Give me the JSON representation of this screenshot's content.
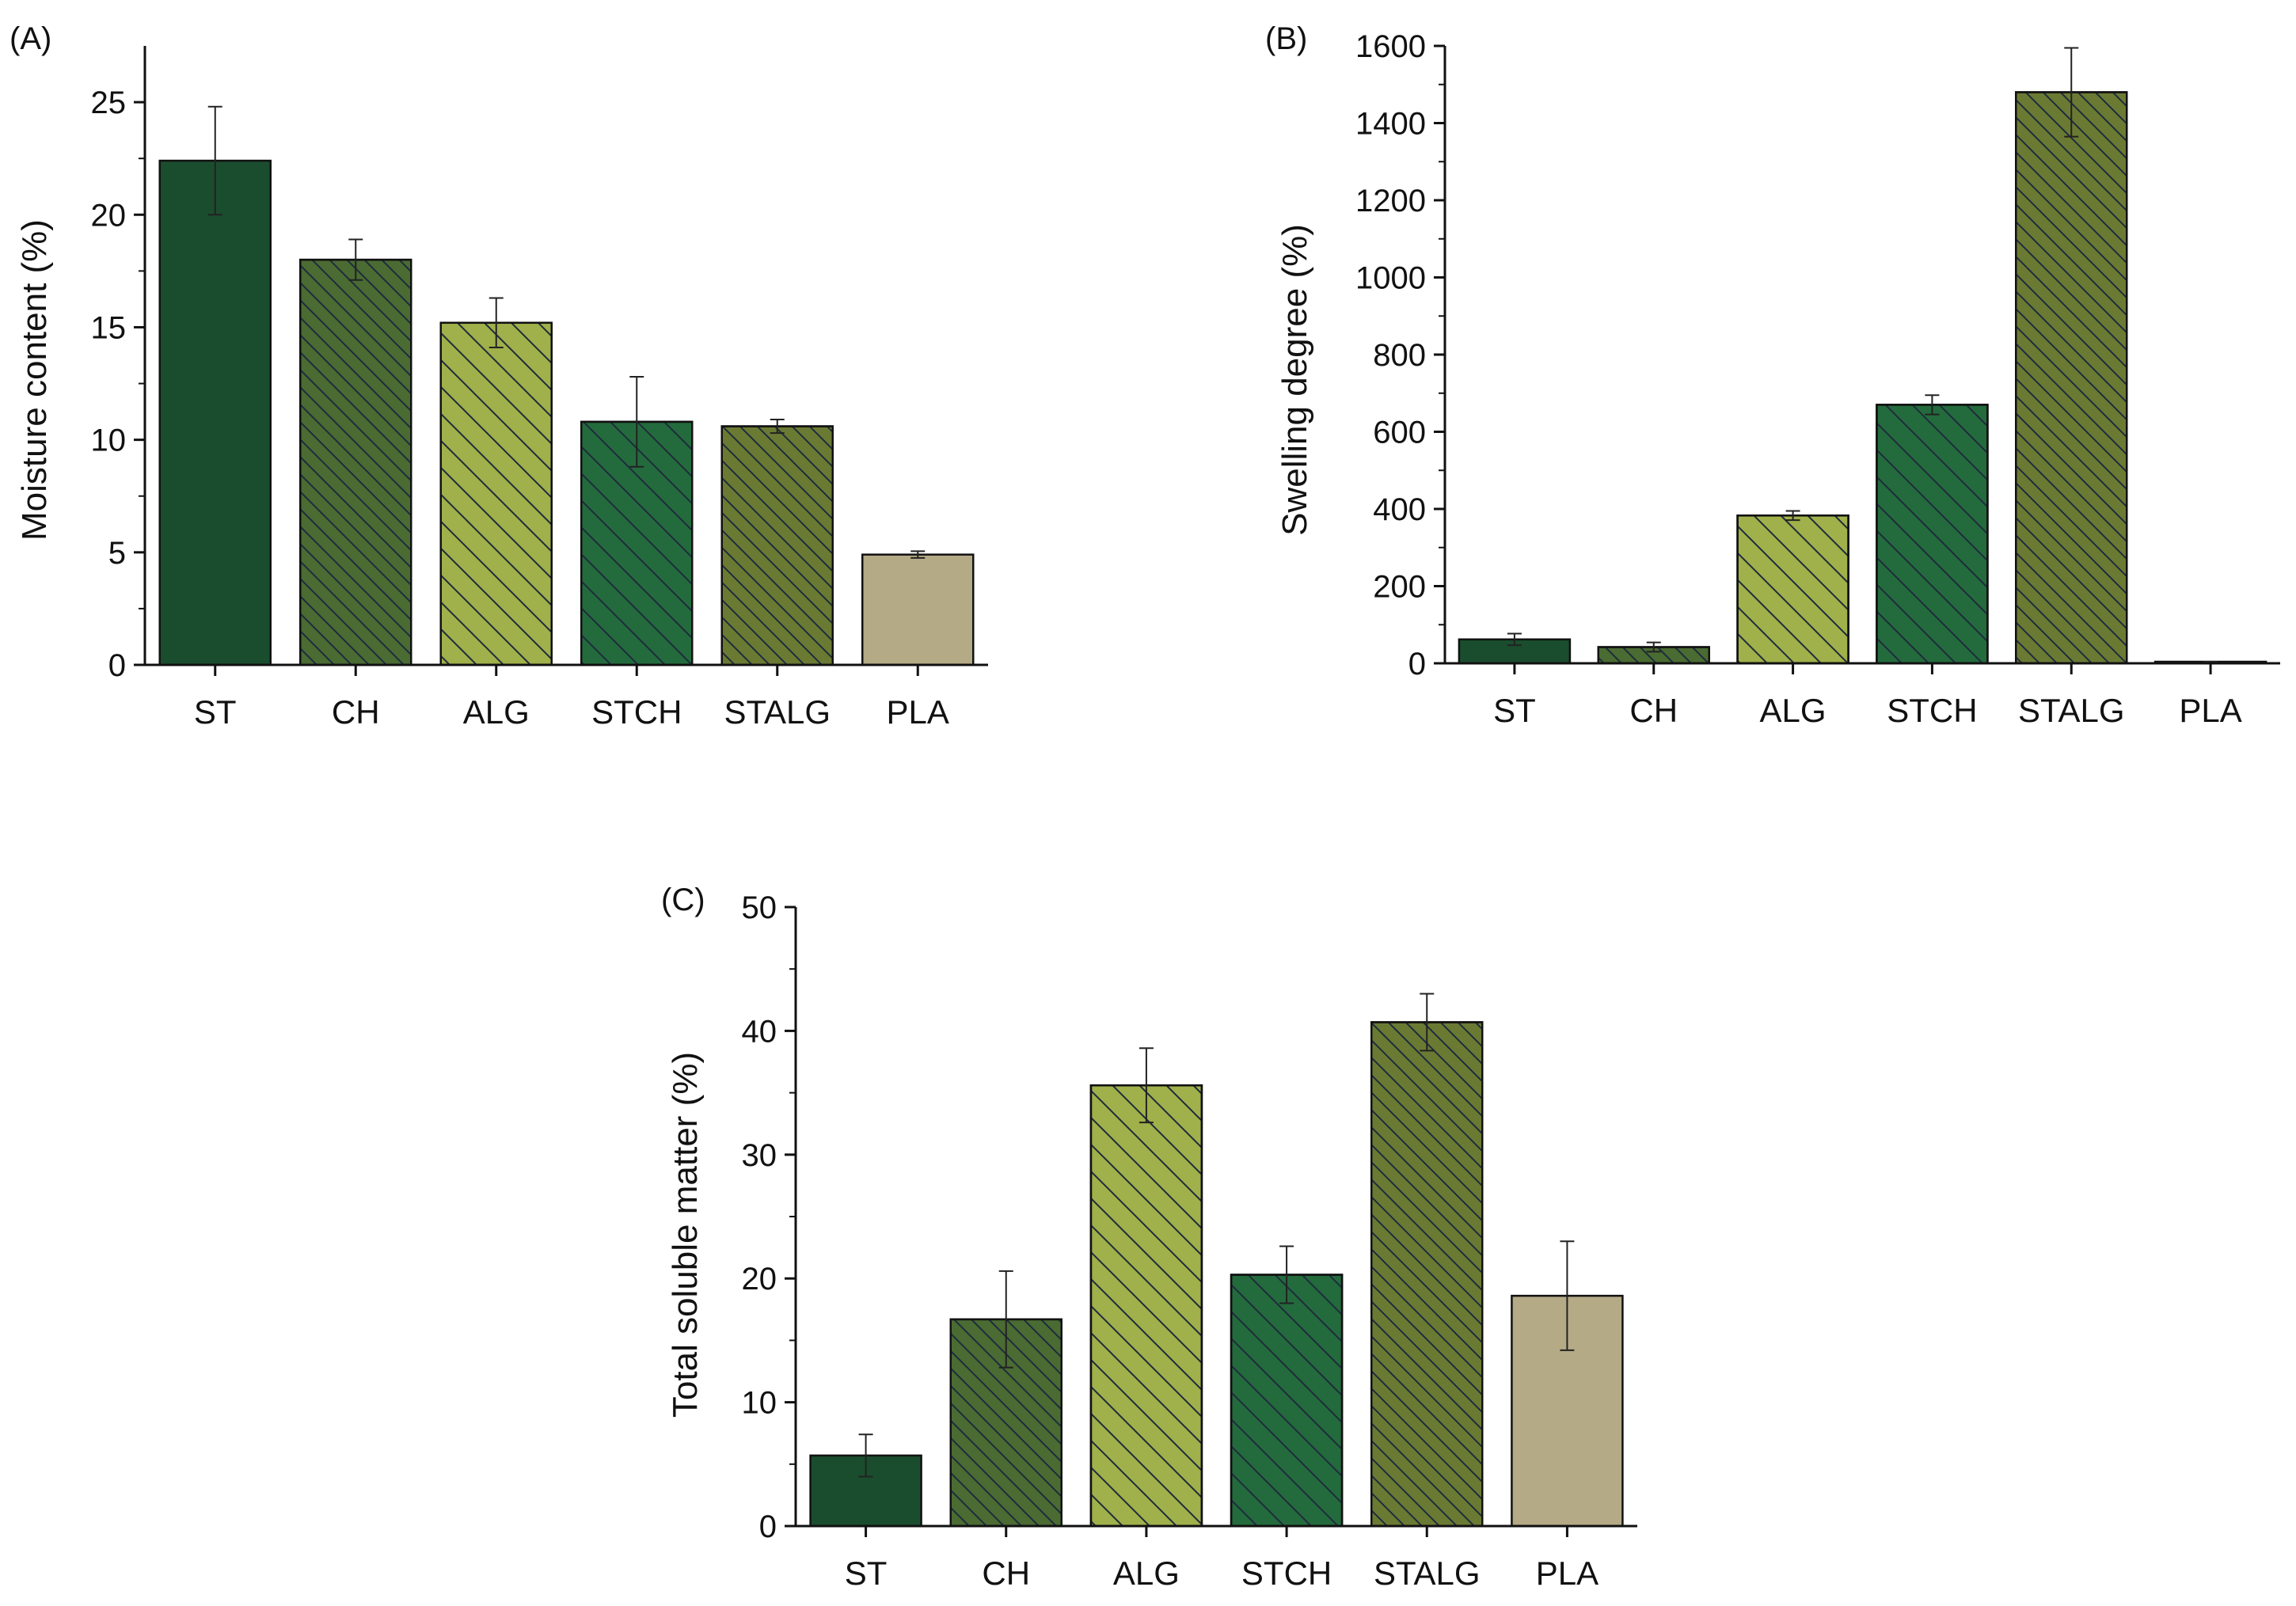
{
  "chart_data": [
    {
      "type": "bar",
      "panel_label": "(A)",
      "title": "",
      "xlabel": "",
      "ylabel": "Moisture content (%)",
      "ylim": [
        0,
        27.5
      ],
      "yticks": [
        0,
        5,
        10,
        15,
        20,
        25
      ],
      "ytick_labels": [
        "0",
        "5",
        "10",
        "15",
        "20",
        "25"
      ],
      "minor_yticks": true,
      "grid": false,
      "categories": [
        "ST",
        "CH",
        "ALG",
        "STCH",
        "STALG",
        "PLA"
      ],
      "values": [
        22.4,
        18.0,
        15.2,
        10.8,
        10.6,
        4.9
      ],
      "errors": [
        2.4,
        0.9,
        1.1,
        2.0,
        0.3,
        0.15
      ]
    },
    {
      "type": "bar",
      "panel_label": "(B)",
      "title": "",
      "xlabel": "",
      "ylabel": "Swelling degree (%)",
      "ylim": [
        0,
        1600
      ],
      "yticks": [
        0,
        200,
        400,
        600,
        800,
        1000,
        1200,
        1400,
        1600
      ],
      "ytick_labels": [
        "0",
        "200",
        "400",
        "600",
        "800",
        "1000",
        "1200",
        "1400",
        "1600"
      ],
      "minor_yticks": true,
      "grid": false,
      "categories": [
        "ST",
        "CH",
        "ALG",
        "STCH",
        "STALG",
        "PLA"
      ],
      "values": [
        62,
        42,
        383,
        670,
        1480,
        3
      ],
      "errors": [
        15,
        12,
        12,
        25,
        115,
        1
      ]
    },
    {
      "type": "bar",
      "panel_label": "(C)",
      "title": "",
      "xlabel": "",
      "ylabel": "Total soluble matter (%)",
      "ylim": [
        0,
        50
      ],
      "yticks": [
        0,
        10,
        20,
        30,
        40,
        50
      ],
      "ytick_labels": [
        "0",
        "10",
        "20",
        "30",
        "40",
        "50"
      ],
      "minor_yticks": true,
      "grid": false,
      "categories": [
        "ST",
        "CH",
        "ALG",
        "STCH",
        "STALG",
        "PLA"
      ],
      "values": [
        5.7,
        16.7,
        35.6,
        20.3,
        40.7,
        18.6
      ],
      "errors": [
        1.7,
        3.9,
        3.0,
        2.3,
        2.3,
        4.4
      ]
    }
  ],
  "bar_styles": [
    {
      "fill": "#1a4d2e",
      "hatch": "none"
    },
    {
      "fill": "#4a6b32",
      "hatch": "dense"
    },
    {
      "fill": "#a0b04a",
      "hatch": "sparse"
    },
    {
      "fill": "#236b3d",
      "hatch": "sparse"
    },
    {
      "fill": "#6b7a33",
      "hatch": "dense"
    },
    {
      "fill": "#b5aa86",
      "hatch": "none"
    }
  ],
  "hatch_color": "#1e2b3c"
}
